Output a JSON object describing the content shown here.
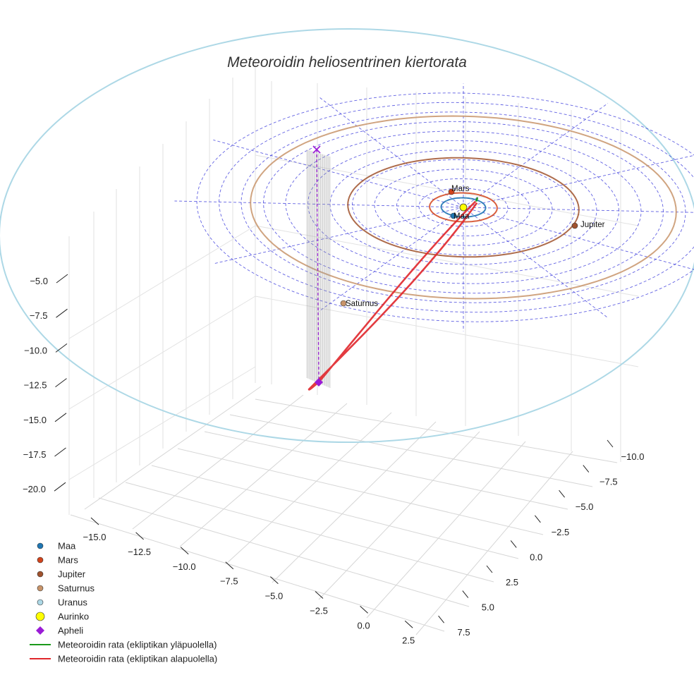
{
  "chart_data": {
    "type": "scatter",
    "title": "Meteoroidin heliosentrinen kiertorata",
    "xlabel": "",
    "ylabel": "",
    "zlabel": "",
    "projection": "3d",
    "grid": true,
    "legend_position": "bottom-left",
    "x_ticks": [
      "−15.0",
      "−12.5",
      "−10.0",
      "−7.5",
      "−5.0",
      "−2.5",
      "0.0",
      "2.5"
    ],
    "y_ticks": [
      "−10.0",
      "−7.5",
      "−5.0",
      "−2.5",
      "0.0",
      "2.5",
      "5.0",
      "7.5"
    ],
    "z_ticks": [
      "−5.0",
      "−7.5",
      "−10.0",
      "−12.5",
      "−15.0",
      "−17.5",
      "−20.0"
    ],
    "xlim": [
      -16.5,
      3.5
    ],
    "ylim": [
      -11,
      8.5
    ],
    "zlim": [
      -21.5,
      -3.5
    ],
    "ecliptic_reference_circles": {
      "radii_au": [
        1,
        2,
        3,
        4,
        5,
        6,
        7,
        8,
        9,
        10,
        11,
        12
      ],
      "style": "dashed",
      "color": "#3b3bdc"
    },
    "planets": [
      {
        "name": "Maa",
        "label": "Maa",
        "orbit_radius_au": 1.0,
        "position_angle_deg": -105,
        "color": "#1f77b4"
      },
      {
        "name": "Mars",
        "label": "Mars",
        "orbit_radius_au": 1.52,
        "position_angle_deg": 110,
        "color": "#d2441c"
      },
      {
        "name": "Jupiter",
        "label": "Jupiter",
        "orbit_radius_au": 5.2,
        "position_angle_deg": -14,
        "color": "#a0522d"
      },
      {
        "name": "Saturnus",
        "label": "Saturnus",
        "orbit_radius_au": 9.58,
        "position_angle_deg": 205,
        "color": "#c8946a"
      },
      {
        "name": "Uranus",
        "label": "",
        "orbit_radius_au": 19.2,
        "position_angle_deg": 0,
        "color": "#add8e6"
      }
    ],
    "sun": {
      "name": "Aurinko",
      "x": 0,
      "y": 0,
      "z": 0,
      "color": "#ffff00"
    },
    "meteoroid_orbit": {
      "perihelion_au": 0.85,
      "aphelion_au": 12.5,
      "aphelion_angle_deg": 230,
      "segments": [
        {
          "name": "Meteoroidin rata (ekliptikan yläpuolella)",
          "color": "#1a9a1a"
        },
        {
          "name": "Meteoroidin rata (ekliptikan alapuolella)",
          "color": "#e0262b"
        }
      ]
    },
    "aphelion": {
      "name": "Apheli",
      "color": "#9a1bd6",
      "projection_marker": "x"
    },
    "legend": [
      {
        "label": "Maa",
        "marker": "circle",
        "color": "#1f77b4"
      },
      {
        "label": "Mars",
        "marker": "circle",
        "color": "#d2441c"
      },
      {
        "label": "Jupiter",
        "marker": "circle",
        "color": "#a0522d"
      },
      {
        "label": "Saturnus",
        "marker": "circle",
        "color": "#c8946a"
      },
      {
        "label": "Uranus",
        "marker": "circle",
        "color": "#add8e6"
      },
      {
        "label": "Aurinko",
        "marker": "circle-large",
        "color": "#ffff00"
      },
      {
        "label": "Apheli",
        "marker": "diamond",
        "color": "#9a1bd6"
      },
      {
        "label": "Meteoroidin rata (ekliptikan yläpuolella)",
        "marker": "line",
        "color": "#1a9a1a"
      },
      {
        "label": "Meteoroidin rata (ekliptikan alapuolella)",
        "marker": "line",
        "color": "#e0262b"
      }
    ]
  }
}
